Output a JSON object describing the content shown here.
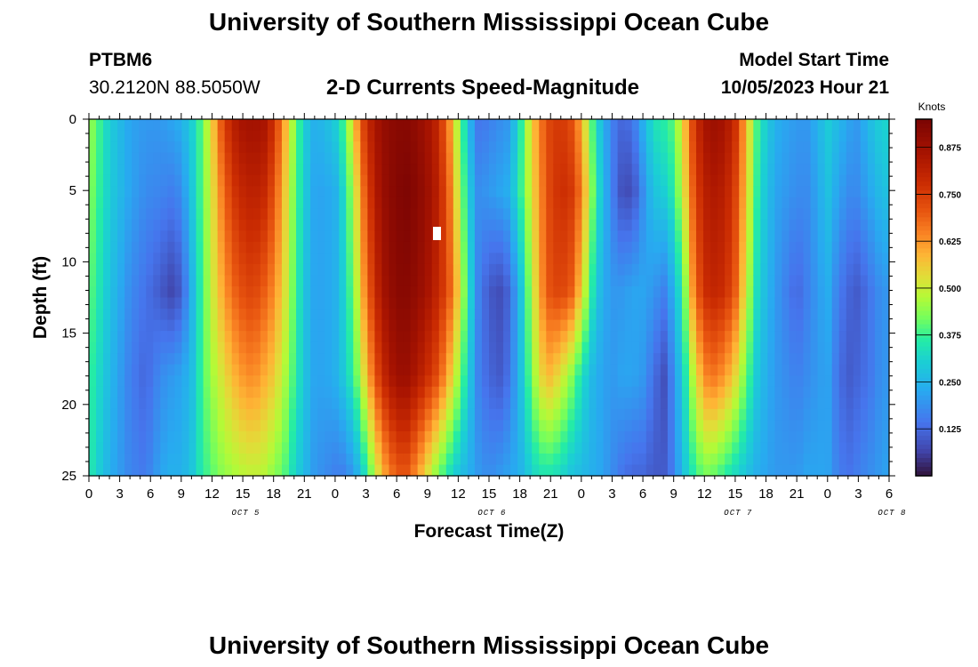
{
  "header": {
    "title": "University of Southern Mississippi Ocean Cube",
    "station_id": "PTBM6",
    "station_coords": "30.2120N  88.5050W",
    "subtitle": "2-D Currents Speed-Magnitude",
    "model_label": "Model Start Time",
    "model_time": "10/05/2023 Hour 21"
  },
  "footer": {
    "title": "University of Southern Mississippi Ocean Cube"
  },
  "chart_data": {
    "type": "heatmap",
    "title": "2-D Currents Speed-Magnitude",
    "xlabel": "Forecast Time(Z)",
    "ylabel": "Depth (ft)",
    "colorbar_label": "Knots",
    "colorbar_ticks": [
      "0.875",
      "0.750",
      "0.625",
      "0.500",
      "0.375",
      "0.250",
      "0.125"
    ],
    "colorbar_tick_values": [
      0.875,
      0.75,
      0.625,
      0.5,
      0.375,
      0.25,
      0.125
    ],
    "value_range": [
      0.0,
      0.95
    ],
    "xlim_hours": [
      0,
      78
    ],
    "ylim_depth_ft": [
      0,
      25
    ],
    "x_tick_labels": [
      "0",
      "3",
      "6",
      "9",
      "12",
      "15",
      "18",
      "21",
      "0",
      "3",
      "6",
      "9",
      "12",
      "15",
      "18",
      "21",
      "0",
      "3",
      "6",
      "9",
      "12",
      "15",
      "18",
      "21",
      "0",
      "3",
      "6"
    ],
    "y_ticks": [
      "0",
      "5",
      "10",
      "15",
      "20",
      "25"
    ],
    "y_tick_values": [
      0,
      5,
      10,
      15,
      20,
      25
    ],
    "day_labels": [
      {
        "text": "OCT 5",
        "hour": 12
      },
      {
        "text": "OCT 6",
        "hour": 36
      },
      {
        "text": "OCT 7",
        "hour": 60
      },
      {
        "text": "OCT 8",
        "hour": 75
      }
    ],
    "depth_profile_hours": [
      0,
      2,
      4,
      5.5,
      7,
      8,
      9,
      10,
      11,
      12,
      13,
      14,
      15,
      16,
      17,
      18,
      19,
      20,
      21,
      22,
      23,
      24,
      25,
      26,
      27,
      28,
      29,
      30,
      31,
      32,
      33,
      34,
      35,
      36,
      37,
      38,
      39,
      40,
      41,
      42,
      43,
      44,
      45,
      46,
      47,
      48,
      49,
      50,
      51,
      52,
      53,
      54,
      55,
      56,
      57,
      58,
      59,
      60,
      61,
      62,
      63,
      64,
      65,
      66,
      67,
      68,
      69,
      70,
      71,
      72,
      73,
      74,
      75,
      76,
      77,
      78
    ],
    "depth_profiles_knots": [
      [
        0.46,
        0.44,
        0.41,
        0.38,
        0.36
      ],
      [
        0.3,
        0.3,
        0.28,
        0.26,
        0.24
      ],
      [
        0.22,
        0.22,
        0.18,
        0.16,
        0.17
      ],
      [
        0.2,
        0.18,
        0.14,
        0.12,
        0.15
      ],
      [
        0.2,
        0.17,
        0.1,
        0.18,
        0.22
      ],
      [
        0.22,
        0.16,
        0.07,
        0.2,
        0.24
      ],
      [
        0.24,
        0.18,
        0.1,
        0.22,
        0.24
      ],
      [
        0.3,
        0.28,
        0.24,
        0.26,
        0.28
      ],
      [
        0.4,
        0.4,
        0.38,
        0.38,
        0.36
      ],
      [
        0.55,
        0.52,
        0.5,
        0.46,
        0.4
      ],
      [
        0.72,
        0.66,
        0.6,
        0.52,
        0.44
      ],
      [
        0.82,
        0.76,
        0.68,
        0.58,
        0.46
      ],
      [
        0.86,
        0.8,
        0.72,
        0.62,
        0.48
      ],
      [
        0.87,
        0.82,
        0.74,
        0.64,
        0.49
      ],
      [
        0.86,
        0.8,
        0.7,
        0.6,
        0.48
      ],
      [
        0.78,
        0.72,
        0.64,
        0.56,
        0.44
      ],
      [
        0.62,
        0.58,
        0.54,
        0.48,
        0.4
      ],
      [
        0.44,
        0.42,
        0.4,
        0.38,
        0.32
      ],
      [
        0.3,
        0.3,
        0.28,
        0.28,
        0.26
      ],
      [
        0.24,
        0.22,
        0.22,
        0.22,
        0.2
      ],
      [
        0.26,
        0.22,
        0.22,
        0.22,
        0.18
      ],
      [
        0.3,
        0.24,
        0.24,
        0.24,
        0.16
      ],
      [
        0.4,
        0.34,
        0.32,
        0.3,
        0.16
      ],
      [
        0.6,
        0.52,
        0.46,
        0.4,
        0.22
      ],
      [
        0.78,
        0.72,
        0.66,
        0.56,
        0.34
      ],
      [
        0.86,
        0.84,
        0.8,
        0.72,
        0.5
      ],
      [
        0.9,
        0.9,
        0.88,
        0.82,
        0.62
      ],
      [
        0.92,
        0.93,
        0.92,
        0.88,
        0.7
      ],
      [
        0.92,
        0.94,
        0.92,
        0.88,
        0.7
      ],
      [
        0.9,
        0.92,
        0.9,
        0.84,
        0.62
      ],
      [
        0.86,
        0.88,
        0.86,
        0.78,
        0.52
      ],
      [
        0.8,
        0.82,
        0.8,
        0.72,
        0.42
      ],
      [
        0.66,
        0.7,
        0.72,
        0.6,
        0.34
      ],
      [
        0.46,
        0.5,
        0.56,
        0.46,
        0.28
      ],
      [
        0.26,
        0.3,
        0.34,
        0.3,
        0.24
      ],
      [
        0.14,
        0.18,
        0.16,
        0.16,
        0.2
      ],
      [
        0.16,
        0.2,
        0.1,
        0.12,
        0.18
      ],
      [
        0.18,
        0.22,
        0.08,
        0.1,
        0.2
      ],
      [
        0.2,
        0.24,
        0.12,
        0.14,
        0.22
      ],
      [
        0.34,
        0.36,
        0.26,
        0.26,
        0.24
      ],
      [
        0.52,
        0.5,
        0.44,
        0.4,
        0.3
      ],
      [
        0.66,
        0.64,
        0.62,
        0.54,
        0.34
      ],
      [
        0.74,
        0.74,
        0.72,
        0.58,
        0.34
      ],
      [
        0.76,
        0.78,
        0.74,
        0.52,
        0.32
      ],
      [
        0.72,
        0.76,
        0.7,
        0.44,
        0.28
      ],
      [
        0.6,
        0.66,
        0.56,
        0.34,
        0.26
      ],
      [
        0.4,
        0.44,
        0.36,
        0.26,
        0.24
      ],
      [
        0.26,
        0.28,
        0.24,
        0.22,
        0.22
      ],
      [
        0.16,
        0.16,
        0.2,
        0.2,
        0.18
      ],
      [
        0.12,
        0.08,
        0.2,
        0.22,
        0.14
      ],
      [
        0.14,
        0.08,
        0.22,
        0.22,
        0.12
      ],
      [
        0.24,
        0.18,
        0.22,
        0.2,
        0.12
      ],
      [
        0.34,
        0.28,
        0.2,
        0.14,
        0.1
      ],
      [
        0.36,
        0.3,
        0.16,
        0.08,
        0.1
      ],
      [
        0.4,
        0.36,
        0.24,
        0.18,
        0.16
      ],
      [
        0.56,
        0.52,
        0.4,
        0.32,
        0.28
      ],
      [
        0.76,
        0.72,
        0.66,
        0.5,
        0.36
      ],
      [
        0.86,
        0.82,
        0.78,
        0.64,
        0.42
      ],
      [
        0.88,
        0.84,
        0.8,
        0.66,
        0.4
      ],
      [
        0.86,
        0.82,
        0.78,
        0.62,
        0.36
      ],
      [
        0.78,
        0.74,
        0.7,
        0.54,
        0.32
      ],
      [
        0.6,
        0.58,
        0.52,
        0.42,
        0.28
      ],
      [
        0.4,
        0.38,
        0.34,
        0.3,
        0.24
      ],
      [
        0.3,
        0.28,
        0.26,
        0.24,
        0.22
      ],
      [
        0.24,
        0.22,
        0.2,
        0.2,
        0.2
      ],
      [
        0.22,
        0.2,
        0.16,
        0.18,
        0.2
      ],
      [
        0.2,
        0.18,
        0.12,
        0.16,
        0.2
      ],
      [
        0.2,
        0.18,
        0.16,
        0.18,
        0.22
      ],
      [
        0.24,
        0.22,
        0.2,
        0.2,
        0.22
      ],
      [
        0.3,
        0.28,
        0.24,
        0.22,
        0.22
      ],
      [
        0.26,
        0.22,
        0.16,
        0.14,
        0.16
      ],
      [
        0.22,
        0.18,
        0.12,
        0.1,
        0.14
      ],
      [
        0.2,
        0.18,
        0.1,
        0.12,
        0.16
      ],
      [
        0.26,
        0.22,
        0.14,
        0.14,
        0.18
      ],
      [
        0.3,
        0.26,
        0.18,
        0.18,
        0.2
      ],
      [
        0.32,
        0.28,
        0.2,
        0.2,
        0.22
      ]
    ],
    "depth_profile_depths_ft": [
      0,
      5,
      12,
      18,
      25
    ]
  }
}
